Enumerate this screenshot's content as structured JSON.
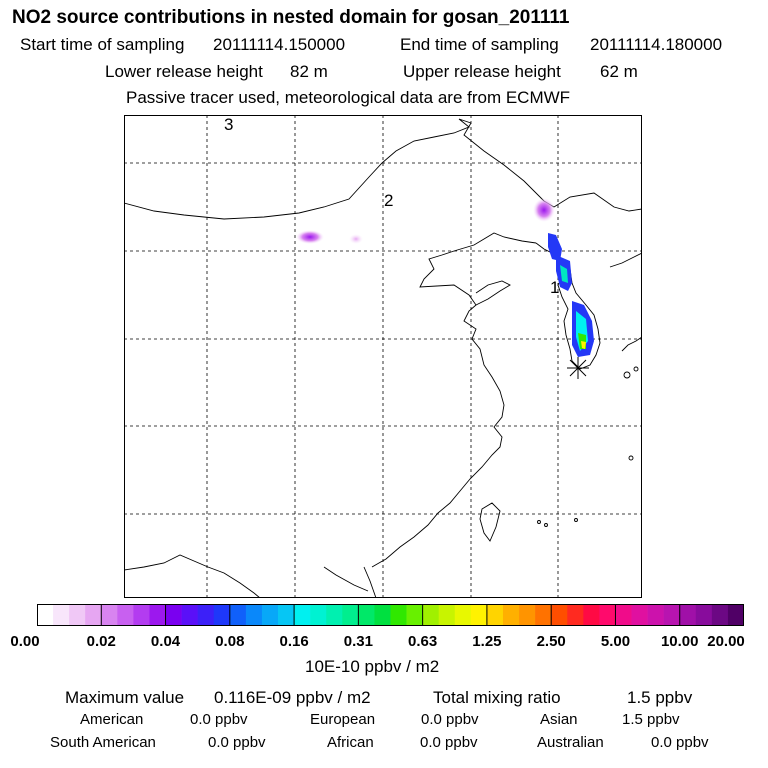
{
  "header": {
    "title": "NO2 source contributions in nested domain for gosan_201111",
    "start_label": "Start time of sampling",
    "start_value": "20111114.150000",
    "end_label": "End time of sampling",
    "end_value": "20111114.180000",
    "lower_label": "Lower release height",
    "lower_value": "82 m",
    "upper_label": "Upper release height",
    "upper_value": "62 m",
    "note": "Passive tracer used, meteorological data are from ECMWF"
  },
  "map": {
    "region_labels": [
      "3",
      "2",
      "1"
    ],
    "source_marker": "receptor-star"
  },
  "colorbar": {
    "ticks": [
      "0.00",
      "0.02",
      "0.04",
      "0.08",
      "0.16",
      "0.31",
      "0.63",
      "1.25",
      "2.50",
      "5.00",
      "10.00",
      "20.00"
    ],
    "unit": "10E-10 ppbv / m2",
    "colors": [
      "#ffffff",
      "#f8e6fb",
      "#f0c8f6",
      "#e6a6f2",
      "#d884f0",
      "#c860f0",
      "#b33cf0",
      "#9c18ee",
      "#7a00f0",
      "#5a10f8",
      "#3c20f8",
      "#1e38fa",
      "#1060fa",
      "#0a88fa",
      "#08a8f8",
      "#06c6f4",
      "#00f0f0",
      "#00f2d2",
      "#00f0b0",
      "#00ee8e",
      "#00e868",
      "#00e040",
      "#30e800",
      "#68f000",
      "#a0f000",
      "#c8f400",
      "#e8f800",
      "#fff200",
      "#ffd400",
      "#ffb000",
      "#ff9400",
      "#ff7200",
      "#ff4e00",
      "#ff2a20",
      "#ff0a44",
      "#ff0a6c",
      "#f00c8a",
      "#e010a0",
      "#cc12ac",
      "#b814b0",
      "#a010a8",
      "#880c9c",
      "#6c0884",
      "#500066"
    ]
  },
  "footer": {
    "max_label": "Maximum value",
    "max_value": "0.116E-09 ppbv / m2",
    "total_label": "Total mixing ratio",
    "total_value": "1.5 ppbv",
    "regions": [
      {
        "name": "American",
        "value": "0.0 ppbv"
      },
      {
        "name": "European",
        "value": "0.0 ppbv"
      },
      {
        "name": "Asian",
        "value": "1.5 ppbv"
      },
      {
        "name": "South American",
        "value": "0.0 ppbv"
      },
      {
        "name": "African",
        "value": "0.0 ppbv"
      },
      {
        "name": "Australian",
        "value": "0.0 ppbv"
      }
    ]
  }
}
